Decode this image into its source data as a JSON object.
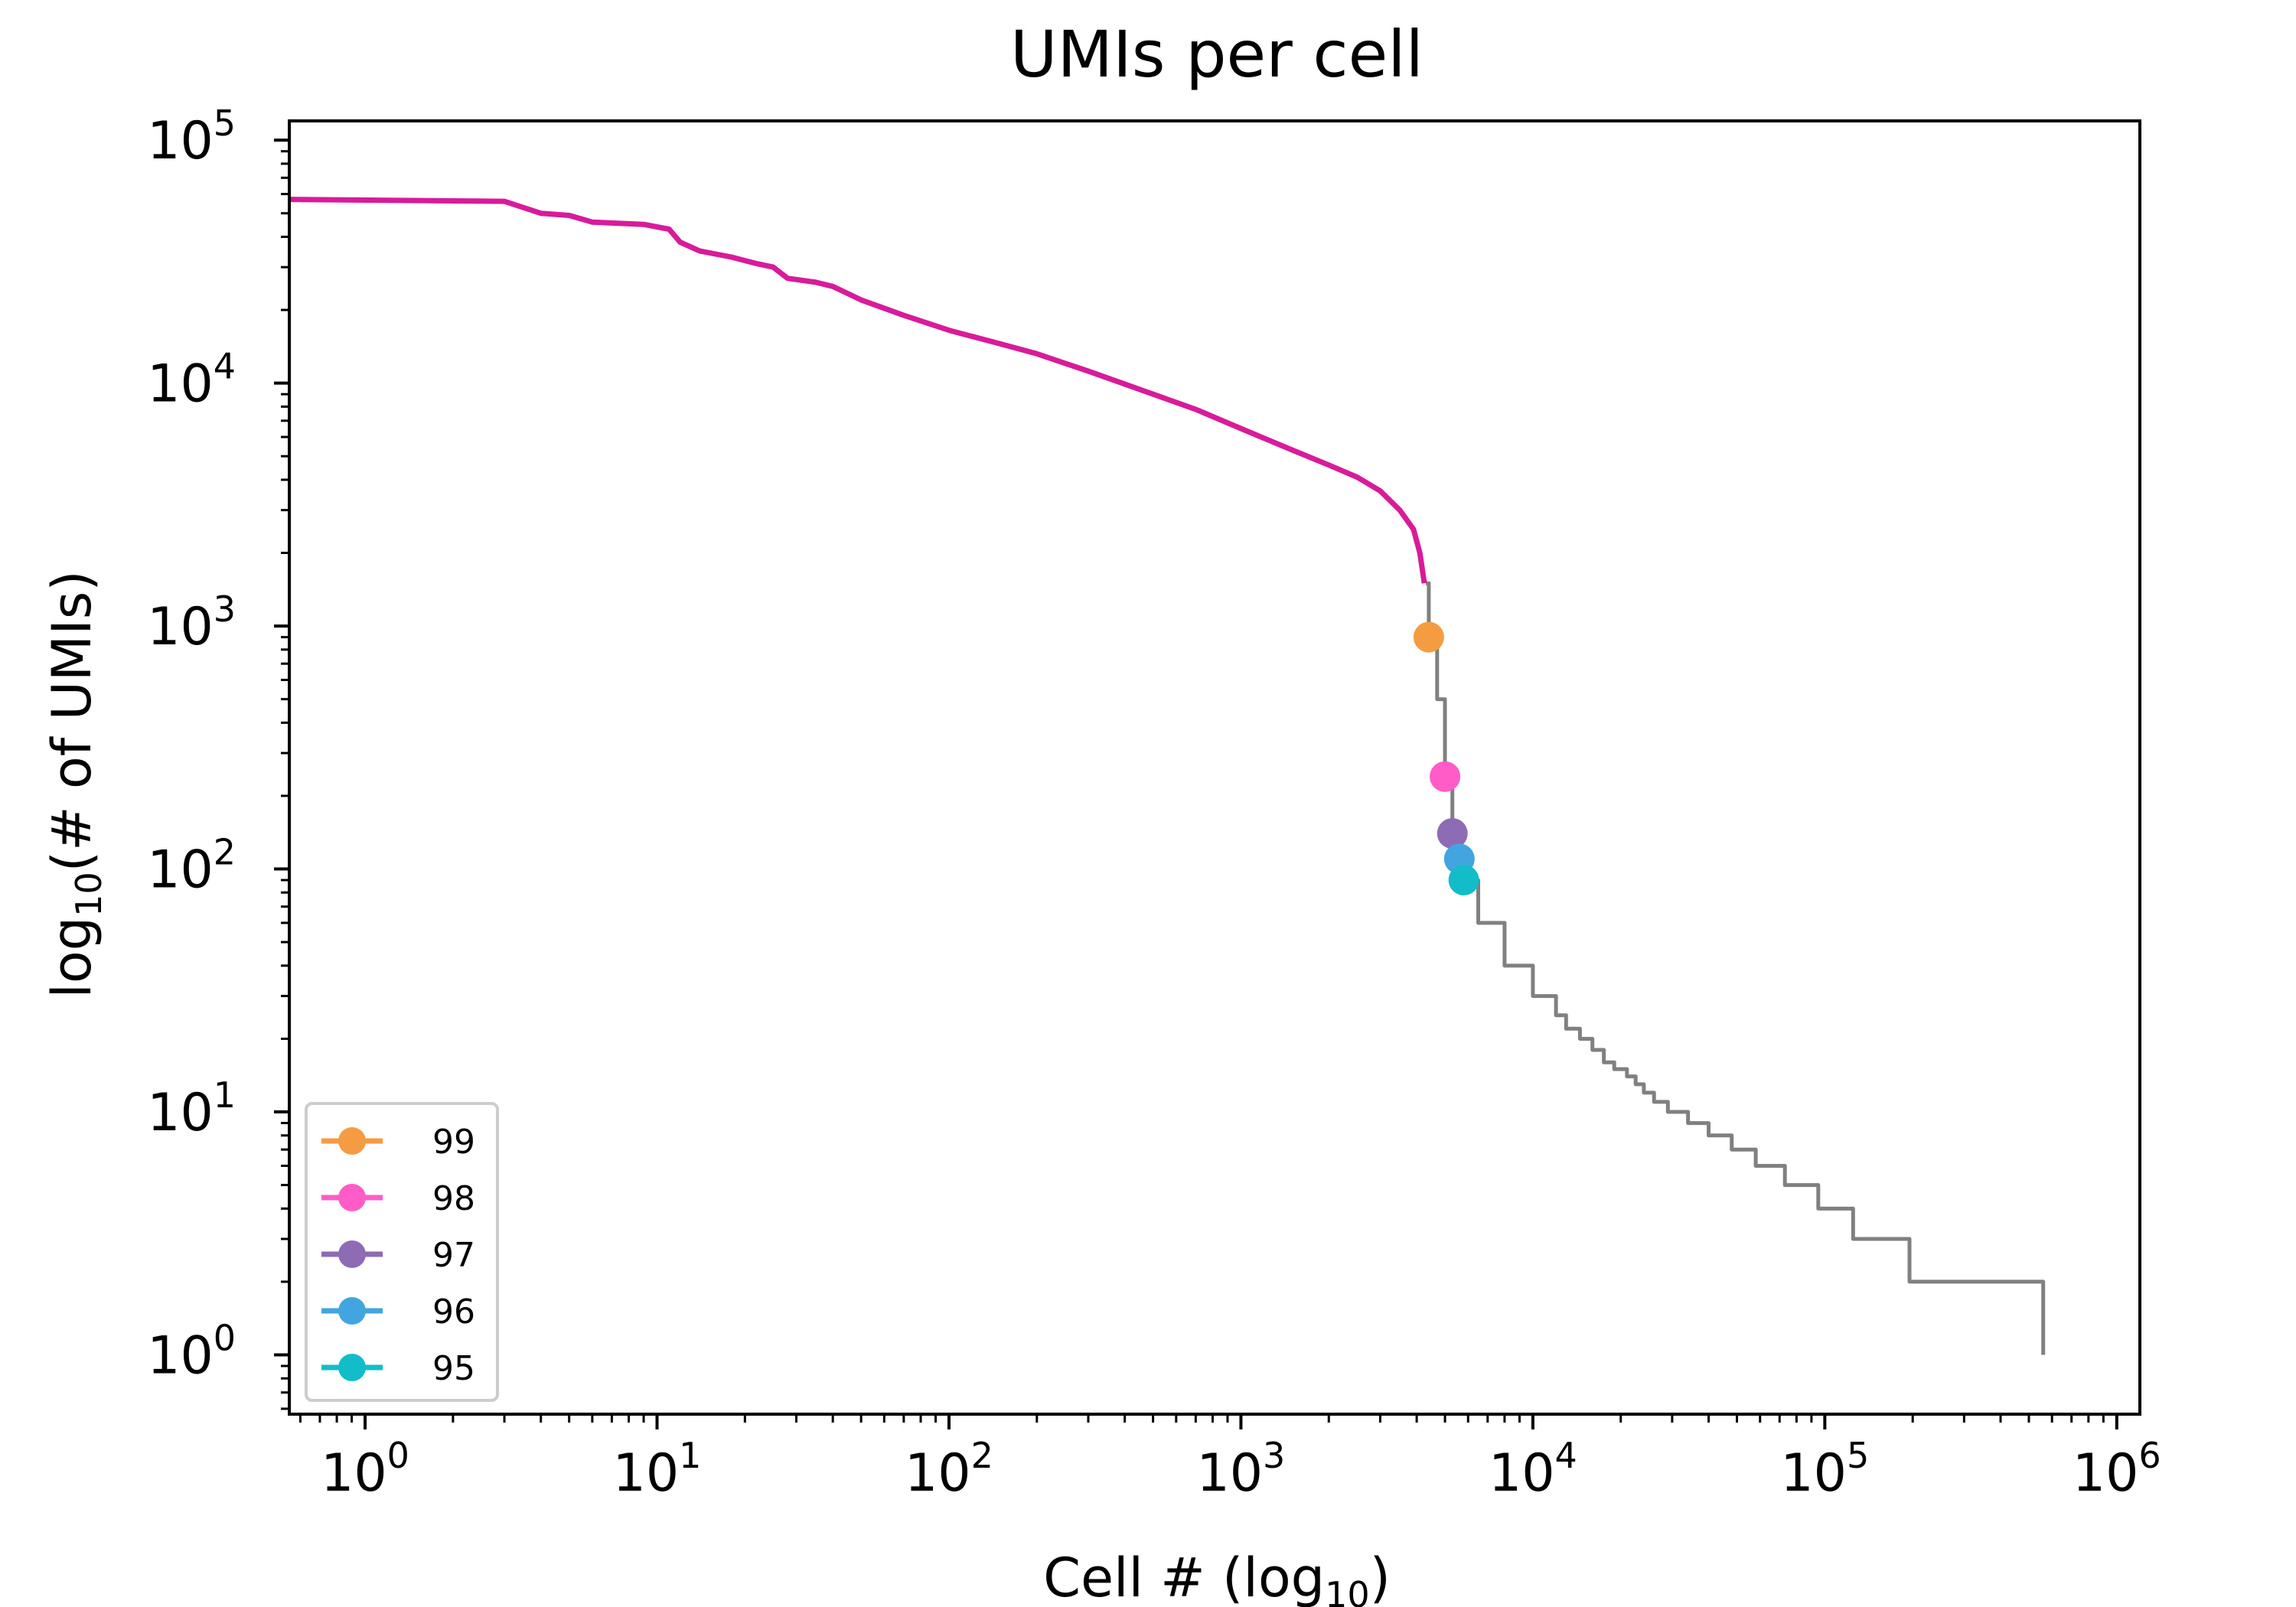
{
  "chart_data": {
    "type": "line",
    "title": "UMIs per cell",
    "xlabel": "Cell # (log",
    "xlabel_sub": "10",
    "xlabel_end": ")",
    "ylabel": "log",
    "ylabel_sub": "10",
    "ylabel_end": "(# of UMIs)",
    "xscale": "log",
    "yscale": "log",
    "xlim": [
      0.55,
      1200000
    ],
    "ylim": [
      0.57,
      120000
    ],
    "x_ticks": [
      {
        "value": 1,
        "base": "10",
        "exp": "0"
      },
      {
        "value": 10,
        "base": "10",
        "exp": "1"
      },
      {
        "value": 100,
        "base": "10",
        "exp": "2"
      },
      {
        "value": 1000,
        "base": "10",
        "exp": "3"
      },
      {
        "value": 10000,
        "base": "10",
        "exp": "4"
      },
      {
        "value": 100000,
        "base": "10",
        "exp": "5"
      },
      {
        "value": 1000000,
        "base": "10",
        "exp": "6"
      }
    ],
    "y_ticks": [
      {
        "value": 1,
        "base": "10",
        "exp": "0"
      },
      {
        "value": 10,
        "base": "10",
        "exp": "1"
      },
      {
        "value": 100,
        "base": "10",
        "exp": "2"
      },
      {
        "value": 1000,
        "base": "10",
        "exp": "3"
      },
      {
        "value": 10000,
        "base": "10",
        "exp": "4"
      },
      {
        "value": 100000,
        "base": "10",
        "exp": "5"
      }
    ],
    "grid": false,
    "legend_position": "bottom-left",
    "series": [
      {
        "name": "",
        "color": "#808080",
        "style": "step",
        "points": [
          [
            4300,
            1500
          ],
          [
            4400,
            900
          ],
          [
            4700,
            500
          ],
          [
            5000,
            240
          ],
          [
            5300,
            140
          ],
          [
            5600,
            110
          ],
          [
            5800,
            90
          ],
          [
            6500,
            60
          ],
          [
            8000,
            40
          ],
          [
            10000,
            30
          ],
          [
            12000,
            25
          ],
          [
            13000,
            22
          ],
          [
            14500,
            20
          ],
          [
            16000,
            18
          ],
          [
            17500,
            16
          ],
          [
            19000,
            15
          ],
          [
            21000,
            14
          ],
          [
            22500,
            13
          ],
          [
            24000,
            12
          ],
          [
            26000,
            11
          ],
          [
            29000,
            10
          ],
          [
            34000,
            9
          ],
          [
            40000,
            8
          ],
          [
            48000,
            7
          ],
          [
            58000,
            6
          ],
          [
            73000,
            5
          ],
          [
            95000,
            4
          ],
          [
            125000,
            3
          ],
          [
            195000,
            2
          ],
          [
            560000,
            1
          ]
        ]
      },
      {
        "name": "",
        "color": "#d81b9a",
        "style": "line",
        "points": [
          [
            0.5,
            57000
          ],
          [
            3,
            56000
          ],
          [
            4,
            50000
          ],
          [
            5,
            49000
          ],
          [
            6,
            46000
          ],
          [
            9,
            45000
          ],
          [
            11,
            43000
          ],
          [
            12,
            38000
          ],
          [
            14,
            35000
          ],
          [
            18,
            33000
          ],
          [
            22,
            31000
          ],
          [
            25,
            30000
          ],
          [
            28,
            27000
          ],
          [
            35,
            26000
          ],
          [
            40,
            25000
          ],
          [
            50,
            22000
          ],
          [
            70,
            19000
          ],
          [
            100,
            16500
          ],
          [
            150,
            14500
          ],
          [
            200,
            13200
          ],
          [
            300,
            11200
          ],
          [
            500,
            9000
          ],
          [
            700,
            7800
          ],
          [
            1000,
            6500
          ],
          [
            1500,
            5300
          ],
          [
            2000,
            4600
          ],
          [
            2500,
            4100
          ],
          [
            3000,
            3600
          ],
          [
            3500,
            3000
          ],
          [
            3900,
            2500
          ],
          [
            4100,
            2000
          ],
          [
            4250,
            1500
          ]
        ]
      }
    ],
    "markers": [
      {
        "label": "99",
        "x": 4400,
        "y": 900,
        "color": "#f59b42"
      },
      {
        "label": "98",
        "x": 5000,
        "y": 240,
        "color": "#ff5cc8"
      },
      {
        "label": "97",
        "x": 5300,
        "y": 140,
        "color": "#8e6bb5"
      },
      {
        "label": "96",
        "x": 5600,
        "y": 110,
        "color": "#42a5e0"
      },
      {
        "label": "95",
        "x": 5800,
        "y": 90,
        "color": "#12bdc9"
      }
    ]
  }
}
